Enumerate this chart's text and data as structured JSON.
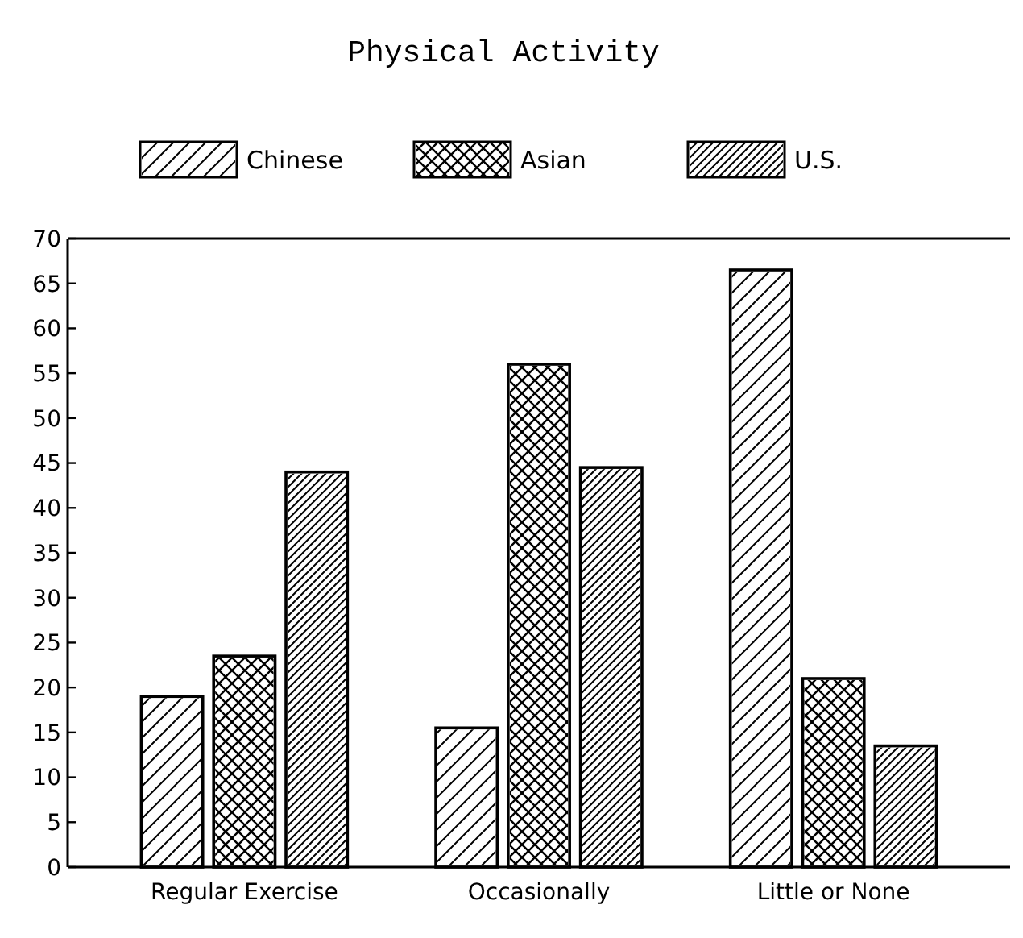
{
  "chart_data": {
    "type": "bar",
    "title": "Physical Activity",
    "categories": [
      "Regular Exercise",
      "Occasionally",
      "Little or None"
    ],
    "series": [
      {
        "name": "Chinese",
        "color": "#000000",
        "values": [
          19,
          15.5,
          66.5
        ]
      },
      {
        "name": "Asian",
        "color": "#000000",
        "values": [
          23.5,
          56,
          21
        ]
      },
      {
        "name": "U.S.",
        "color": "#000000",
        "values": [
          44,
          44.5,
          13.5
        ]
      }
    ],
    "ylim": [
      0,
      70
    ],
    "yticks": [
      0,
      5,
      10,
      15,
      20,
      25,
      30,
      35,
      40,
      45,
      50,
      55,
      60,
      65,
      70
    ],
    "grid": false,
    "legend": "top"
  }
}
